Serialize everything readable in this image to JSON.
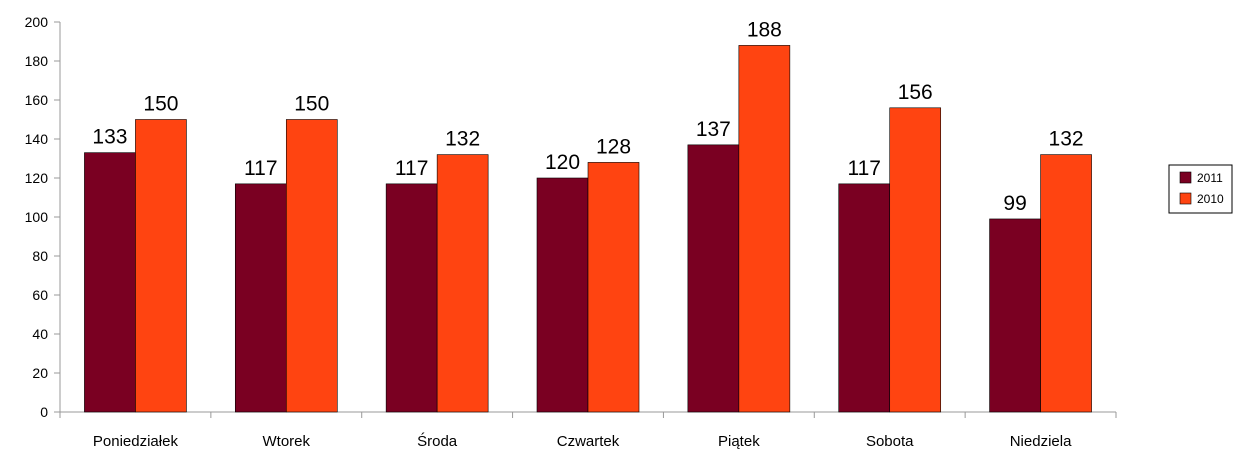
{
  "chart_data": {
    "type": "bar",
    "title": "",
    "xlabel": "",
    "ylabel": "",
    "ylim": [
      0,
      200
    ],
    "yticks": [
      0,
      20,
      40,
      60,
      80,
      100,
      120,
      140,
      160,
      180,
      200
    ],
    "grid": false,
    "legend_position": "right",
    "categories": [
      "Poniedziałek",
      "Wtorek",
      "Środa",
      "Czwartek",
      "Piątek",
      "Sobota",
      "Niedziela"
    ],
    "series": [
      {
        "name": "2011",
        "color": "#7a0022",
        "values": [
          133,
          117,
          117,
          120,
          137,
          117,
          99
        ]
      },
      {
        "name": "2010",
        "color": "#ff4411",
        "values": [
          150,
          150,
          132,
          128,
          188,
          156,
          132
        ]
      }
    ],
    "data_labels": true
  }
}
